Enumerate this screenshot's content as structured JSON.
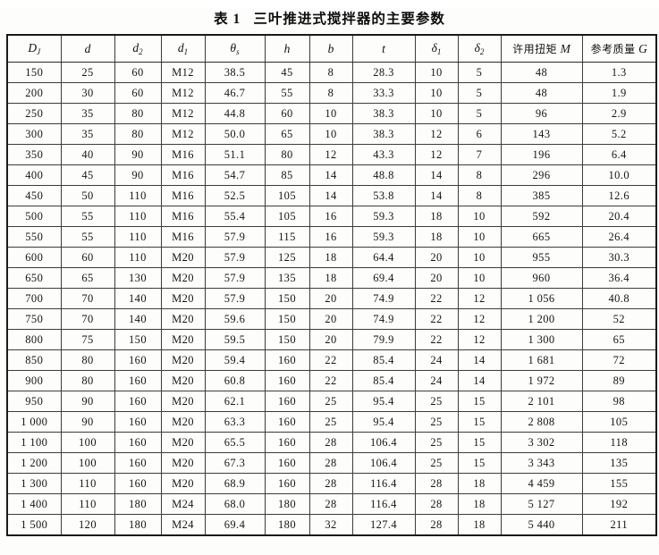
{
  "title": {
    "label": "表 1",
    "text": "三叶推进式搅拌器的主要参数"
  },
  "table": {
    "headers": [
      {
        "base": "D",
        "sub": "J"
      },
      {
        "base": "d"
      },
      {
        "base": "d",
        "sub": "2"
      },
      {
        "base": "d",
        "sub": "1"
      },
      {
        "base": "θ",
        "sub": "s"
      },
      {
        "base": "h"
      },
      {
        "base": "b"
      },
      {
        "base": "t"
      },
      {
        "base": "δ",
        "sub": "1"
      },
      {
        "base": "δ",
        "sub": "2"
      },
      {
        "prefix": "许用扭矩 ",
        "base": "M"
      },
      {
        "prefix": "参考质量 ",
        "base": "G"
      }
    ],
    "rows": [
      [
        "150",
        "25",
        "60",
        "M12",
        "38.5",
        "45",
        "8",
        "28.3",
        "10",
        "5",
        "48",
        "1.3"
      ],
      [
        "200",
        "30",
        "60",
        "M12",
        "46.7",
        "55",
        "8",
        "33.3",
        "10",
        "5",
        "48",
        "1.9"
      ],
      [
        "250",
        "35",
        "80",
        "M12",
        "44.8",
        "60",
        "10",
        "38.3",
        "10",
        "5",
        "96",
        "2.9"
      ],
      [
        "300",
        "35",
        "80",
        "M12",
        "50.0",
        "65",
        "10",
        "38.3",
        "12",
        "6",
        "143",
        "5.2"
      ],
      [
        "350",
        "40",
        "90",
        "M16",
        "51.1",
        "80",
        "12",
        "43.3",
        "12",
        "7",
        "196",
        "6.4"
      ],
      [
        "400",
        "45",
        "90",
        "M16",
        "54.7",
        "85",
        "14",
        "48.8",
        "14",
        "8",
        "296",
        "10.0"
      ],
      [
        "450",
        "50",
        "110",
        "M16",
        "52.5",
        "105",
        "14",
        "53.8",
        "14",
        "8",
        "385",
        "12.6"
      ],
      [
        "500",
        "55",
        "110",
        "M16",
        "55.4",
        "105",
        "16",
        "59.3",
        "18",
        "10",
        "592",
        "20.4"
      ],
      [
        "550",
        "55",
        "110",
        "M16",
        "57.9",
        "115",
        "16",
        "59.3",
        "18",
        "10",
        "665",
        "26.4"
      ],
      [
        "600",
        "60",
        "110",
        "M20",
        "57.9",
        "125",
        "18",
        "64.4",
        "20",
        "10",
        "955",
        "30.3"
      ],
      [
        "650",
        "65",
        "130",
        "M20",
        "57.9",
        "135",
        "18",
        "69.4",
        "20",
        "10",
        "960",
        "36.4"
      ],
      [
        "700",
        "70",
        "140",
        "M20",
        "57.9",
        "150",
        "20",
        "74.9",
        "22",
        "12",
        "1 056",
        "40.8"
      ],
      [
        "750",
        "70",
        "140",
        "M20",
        "59.6",
        "150",
        "20",
        "74.9",
        "22",
        "12",
        "1 200",
        "52"
      ],
      [
        "800",
        "75",
        "150",
        "M20",
        "59.5",
        "150",
        "20",
        "79.9",
        "22",
        "12",
        "1 300",
        "65"
      ],
      [
        "850",
        "80",
        "160",
        "M20",
        "59.4",
        "160",
        "22",
        "85.4",
        "24",
        "14",
        "1 681",
        "72"
      ],
      [
        "900",
        "80",
        "160",
        "M20",
        "60.8",
        "160",
        "22",
        "85.4",
        "24",
        "14",
        "1 972",
        "89"
      ],
      [
        "950",
        "90",
        "160",
        "M20",
        "62.1",
        "160",
        "25",
        "95.4",
        "25",
        "15",
        "2 101",
        "98"
      ],
      [
        "1 000",
        "90",
        "160",
        "M20",
        "63.3",
        "160",
        "25",
        "95.4",
        "25",
        "15",
        "2 808",
        "105"
      ],
      [
        "1 100",
        "100",
        "160",
        "M20",
        "65.5",
        "160",
        "28",
        "106.4",
        "25",
        "15",
        "3 302",
        "118"
      ],
      [
        "1 200",
        "100",
        "160",
        "M20",
        "67.3",
        "160",
        "28",
        "106.4",
        "25",
        "15",
        "3 343",
        "135"
      ],
      [
        "1 300",
        "110",
        "160",
        "M20",
        "68.9",
        "160",
        "28",
        "116.4",
        "28",
        "18",
        "4 459",
        "155"
      ],
      [
        "1 400",
        "110",
        "180",
        "M24",
        "68.0",
        "180",
        "28",
        "116.4",
        "28",
        "18",
        "5 127",
        "192"
      ],
      [
        "1 500",
        "120",
        "180",
        "M24",
        "69.4",
        "180",
        "32",
        "127.4",
        "28",
        "18",
        "5 440",
        "211"
      ]
    ]
  }
}
